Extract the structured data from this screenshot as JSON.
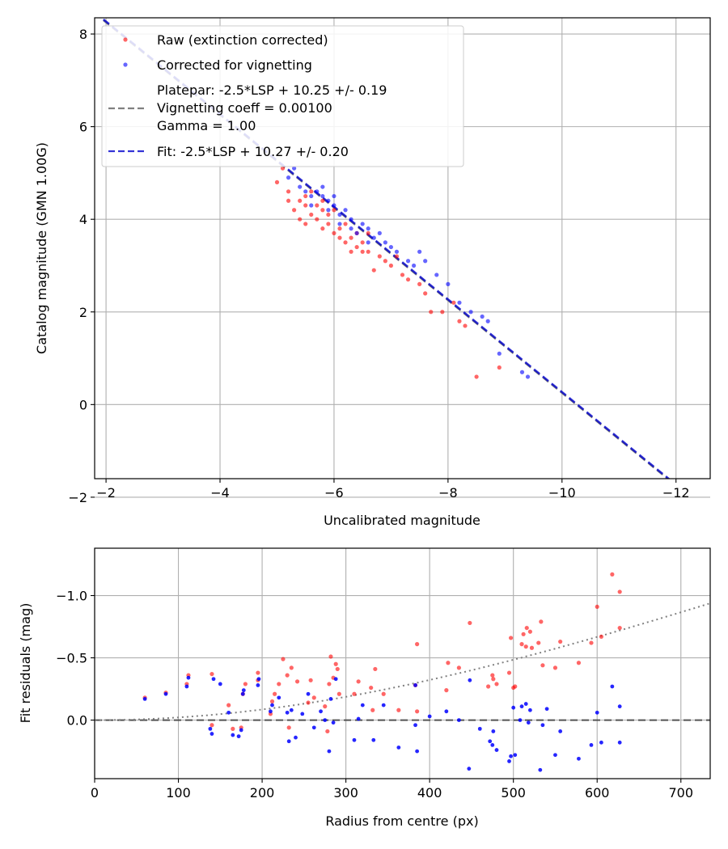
{
  "chart_data": [
    {
      "type": "scatter",
      "xlabel": "Uncalibrated magnitude",
      "ylabel": "Catalog magnitude (GMN 1.00G)",
      "xlim": [
        -1.8,
        -12.6
      ],
      "ylim": [
        8.35,
        -1.6
      ],
      "xticks": [
        -2,
        -4,
        -6,
        -8,
        -10,
        -12
      ],
      "xtick_labels": [
        "−2",
        "−4",
        "−6",
        "−8",
        "−10",
        "−12"
      ],
      "yticks": [
        -2,
        0,
        2,
        4,
        6,
        8
      ],
      "ytick_labels": [
        "−2",
        "0",
        "2",
        "4",
        "6",
        "8"
      ],
      "grid": true,
      "legend_position": "upper-left",
      "legend": {
        "raw": "Raw (extinction corrected)",
        "corrected": "Corrected for vignetting",
        "platepar_lines": [
          "Platepar: -2.5*LSP + 10.25 +/- 0.19",
          "Vignetting coeff = 0.00100",
          "Gamma = 1.00"
        ],
        "fit": "Fit: -2.5*LSP + 10.27 +/- 0.20"
      },
      "colors": {
        "raw": "#ff0000",
        "corrected": "#0000ff",
        "platepar": "#808080",
        "fit": "#0000cc"
      },
      "lines": [
        {
          "name": "platepar",
          "slope": 1.0,
          "intercept": 10.25,
          "style": "dashed"
        },
        {
          "name": "fit",
          "slope": 1.0,
          "intercept": 10.27,
          "style": "dashed"
        }
      ],
      "series": [
        {
          "name": "Raw (extinction corrected)",
          "points": [
            [
              -8.5,
              0.6
            ],
            [
              -8.9,
              0.8
            ],
            [
              -7.7,
              2.0
            ],
            [
              -7.9,
              2.0
            ],
            [
              -8.2,
              1.8
            ],
            [
              -8.3,
              1.7
            ],
            [
              -8.1,
              2.2
            ],
            [
              -7.6,
              2.4
            ],
            [
              -7.2,
              2.8
            ],
            [
              -7.0,
              3.0
            ],
            [
              -6.8,
              3.2
            ],
            [
              -6.6,
              3.3
            ],
            [
              -6.5,
              3.3
            ],
            [
              -6.7,
              2.9
            ],
            [
              -6.4,
              3.4
            ],
            [
              -6.2,
              3.5
            ],
            [
              -6.0,
              3.7
            ],
            [
              -5.8,
              3.8
            ],
            [
              -5.5,
              3.9
            ],
            [
              -5.4,
              4.0
            ],
            [
              -5.7,
              4.0
            ],
            [
              -5.9,
              3.9
            ],
            [
              -6.1,
              3.6
            ],
            [
              -6.3,
              3.6
            ],
            [
              -6.6,
              3.7
            ],
            [
              -5.3,
              4.2
            ],
            [
              -5.5,
              4.5
            ],
            [
              -5.2,
              4.6
            ],
            [
              -5.6,
              4.1
            ],
            [
              -5.0,
              4.8
            ],
            [
              -5.1,
              5.1
            ],
            [
              -6.0,
              4.2
            ],
            [
              -6.2,
              3.9
            ],
            [
              -5.7,
              4.3
            ],
            [
              -5.8,
              4.4
            ],
            [
              -6.5,
              3.5
            ],
            [
              -6.9,
              3.1
            ],
            [
              -7.3,
              2.7
            ],
            [
              -7.5,
              2.6
            ],
            [
              -5.4,
              4.4
            ],
            [
              -5.9,
              4.1
            ],
            [
              -6.1,
              3.8
            ],
            [
              -5.6,
              4.6
            ],
            [
              -5.8,
              4.2
            ],
            [
              -6.4,
              3.7
            ],
            [
              -7.1,
              3.2
            ],
            [
              -6.3,
              3.3
            ],
            [
              -5.5,
              4.3
            ],
            [
              -5.2,
              4.4
            ]
          ]
        },
        {
          "name": "Corrected for vignetting",
          "points": [
            [
              -9.4,
              0.6
            ],
            [
              -9.3,
              0.7
            ],
            [
              -8.9,
              1.1
            ],
            [
              -8.7,
              1.8
            ],
            [
              -8.6,
              1.9
            ],
            [
              -8.4,
              2.0
            ],
            [
              -8.0,
              2.6
            ],
            [
              -7.8,
              2.8
            ],
            [
              -7.4,
              3.0
            ],
            [
              -7.5,
              3.3
            ],
            [
              -7.1,
              3.3
            ],
            [
              -6.9,
              3.5
            ],
            [
              -6.8,
              3.7
            ],
            [
              -6.6,
              3.8
            ],
            [
              -6.5,
              3.9
            ],
            [
              -6.3,
              4.0
            ],
            [
              -6.1,
              4.1
            ],
            [
              -6.0,
              4.3
            ],
            [
              -5.9,
              4.4
            ],
            [
              -5.8,
              4.5
            ],
            [
              -5.6,
              4.5
            ],
            [
              -5.5,
              4.6
            ],
            [
              -5.4,
              4.7
            ],
            [
              -5.3,
              5.1
            ],
            [
              -5.2,
              4.9
            ],
            [
              -6.2,
              4.2
            ],
            [
              -6.4,
              3.7
            ],
            [
              -6.7,
              3.6
            ],
            [
              -7.0,
              3.4
            ],
            [
              -7.3,
              3.1
            ],
            [
              -6.0,
              4.5
            ],
            [
              -5.7,
              4.6
            ],
            [
              -5.9,
              4.2
            ],
            [
              -6.3,
              3.8
            ],
            [
              -7.6,
              3.1
            ],
            [
              -8.2,
              2.2
            ],
            [
              -6.6,
              3.5
            ],
            [
              -5.6,
              4.3
            ],
            [
              -5.8,
              4.7
            ],
            [
              -6.1,
              3.9
            ]
          ]
        }
      ]
    },
    {
      "type": "scatter",
      "xlabel": "Radius from centre (px)",
      "ylabel": "Fit residuals (mag)",
      "xlim": [
        0,
        735
      ],
      "ylim": [
        -1.38,
        0.47
      ],
      "xticks": [
        0,
        100,
        200,
        300,
        400,
        500,
        600,
        700
      ],
      "xtick_labels": [
        "0",
        "100",
        "200",
        "300",
        "400",
        "500",
        "600",
        "700"
      ],
      "yticks": [
        0.0,
        -0.5,
        -1.0
      ],
      "ytick_labels": [
        "0.0",
        "−0.5",
        "−1.0"
      ],
      "grid": true,
      "reference_lines": [
        {
          "name": "zero",
          "value": 0.0,
          "style": "dashed",
          "color": "#404040"
        },
        {
          "name": "vignetting-model",
          "coeff": 0.001,
          "style": "dotted",
          "color": "#808080"
        }
      ],
      "series": [
        {
          "name": "Raw (extinction corrected)",
          "color": "#ff0000",
          "points": [
            [
              60,
              -0.18
            ],
            [
              85,
              -0.22
            ],
            [
              110,
              -0.29
            ],
            [
              112,
              -0.36
            ],
            [
              140,
              -0.37
            ],
            [
              140,
              0.04
            ],
            [
              160,
              -0.12
            ],
            [
              165,
              0.07
            ],
            [
              175,
              0.06
            ],
            [
              177,
              -0.21
            ],
            [
              180,
              -0.29
            ],
            [
              195,
              -0.32
            ],
            [
              195,
              -0.38
            ],
            [
              210,
              -0.05
            ],
            [
              212,
              -0.15
            ],
            [
              215,
              -0.21
            ],
            [
              220,
              -0.29
            ],
            [
              225,
              -0.49
            ],
            [
              230,
              -0.36
            ],
            [
              232,
              0.06
            ],
            [
              235,
              -0.42
            ],
            [
              242,
              -0.31
            ],
            [
              255,
              -0.14
            ],
            [
              258,
              -0.32
            ],
            [
              262,
              -0.18
            ],
            [
              275,
              -0.11
            ],
            [
              278,
              0.09
            ],
            [
              280,
              -0.29
            ],
            [
              282,
              -0.51
            ],
            [
              285,
              -0.34
            ],
            [
              288,
              -0.45
            ],
            [
              290,
              -0.41
            ],
            [
              292,
              -0.21
            ],
            [
              310,
              -0.21
            ],
            [
              315,
              -0.31
            ],
            [
              330,
              -0.26
            ],
            [
              332,
              -0.08
            ],
            [
              335,
              -0.41
            ],
            [
              345,
              -0.21
            ],
            [
              363,
              -0.08
            ],
            [
              383,
              -0.28
            ],
            [
              385,
              -0.61
            ],
            [
              385,
              -0.07
            ],
            [
              420,
              -0.24
            ],
            [
              422,
              -0.46
            ],
            [
              435,
              -0.42
            ],
            [
              448,
              -0.78
            ],
            [
              470,
              -0.27
            ],
            [
              475,
              -0.36
            ],
            [
              476,
              -0.33
            ],
            [
              480,
              -0.29
            ],
            [
              495,
              -0.38
            ],
            [
              497,
              -0.66
            ],
            [
              500,
              -0.26
            ],
            [
              502,
              -0.27
            ],
            [
              510,
              -0.61
            ],
            [
              512,
              -0.69
            ],
            [
              515,
              -0.59
            ],
            [
              516,
              -0.74
            ],
            [
              520,
              -0.71
            ],
            [
              522,
              -0.58
            ],
            [
              530,
              -0.62
            ],
            [
              533,
              -0.79
            ],
            [
              535,
              -0.44
            ],
            [
              550,
              -0.42
            ],
            [
              556,
              -0.63
            ],
            [
              578,
              -0.46
            ],
            [
              593,
              -0.62
            ],
            [
              600,
              -0.91
            ],
            [
              605,
              -0.67
            ],
            [
              618,
              -1.17
            ],
            [
              627,
              -0.74
            ],
            [
              627,
              -1.03
            ]
          ]
        },
        {
          "name": "Corrected for vignetting",
          "color": "#0000ff",
          "points": [
            [
              60,
              -0.17
            ],
            [
              85,
              -0.21
            ],
            [
              110,
              -0.27
            ],
            [
              112,
              -0.34
            ],
            [
              138,
              0.07
            ],
            [
              140,
              0.11
            ],
            [
              142,
              -0.33
            ],
            [
              150,
              -0.29
            ],
            [
              160,
              -0.06
            ],
            [
              165,
              0.12
            ],
            [
              172,
              0.13
            ],
            [
              175,
              0.08
            ],
            [
              177,
              -0.21
            ],
            [
              178,
              -0.24
            ],
            [
              195,
              -0.28
            ],
            [
              196,
              -0.33
            ],
            [
              210,
              -0.07
            ],
            [
              212,
              -0.12
            ],
            [
              220,
              -0.18
            ],
            [
              230,
              -0.06
            ],
            [
              232,
              0.17
            ],
            [
              235,
              -0.08
            ],
            [
              240,
              0.14
            ],
            [
              248,
              -0.05
            ],
            [
              255,
              -0.21
            ],
            [
              262,
              0.06
            ],
            [
              270,
              -0.07
            ],
            [
              275,
              0.0
            ],
            [
              280,
              0.25
            ],
            [
              282,
              -0.17
            ],
            [
              285,
              0.02
            ],
            [
              288,
              -0.33
            ],
            [
              310,
              0.16
            ],
            [
              315,
              -0.01
            ],
            [
              320,
              -0.12
            ],
            [
              333,
              0.16
            ],
            [
              345,
              -0.12
            ],
            [
              363,
              0.22
            ],
            [
              383,
              0.04
            ],
            [
              385,
              0.25
            ],
            [
              400,
              -0.03
            ],
            [
              420,
              -0.07
            ],
            [
              435,
              0.0
            ],
            [
              447,
              0.39
            ],
            [
              448,
              -0.32
            ],
            [
              460,
              0.07
            ],
            [
              472,
              0.17
            ],
            [
              475,
              0.2
            ],
            [
              476,
              0.09
            ],
            [
              480,
              0.24
            ],
            [
              495,
              0.33
            ],
            [
              497,
              0.29
            ],
            [
              500,
              -0.1
            ],
            [
              502,
              0.28
            ],
            [
              508,
              0.0
            ],
            [
              510,
              -0.11
            ],
            [
              515,
              -0.13
            ],
            [
              518,
              0.02
            ],
            [
              520,
              -0.08
            ],
            [
              532,
              0.4
            ],
            [
              535,
              0.04
            ],
            [
              540,
              -0.09
            ],
            [
              550,
              0.28
            ],
            [
              556,
              0.09
            ],
            [
              578,
              0.31
            ],
            [
              593,
              0.2
            ],
            [
              600,
              -0.06
            ],
            [
              605,
              0.18
            ],
            [
              618,
              -0.27
            ],
            [
              627,
              0.18
            ],
            [
              627,
              -0.11
            ],
            [
              383,
              -0.28
            ]
          ]
        }
      ]
    }
  ]
}
